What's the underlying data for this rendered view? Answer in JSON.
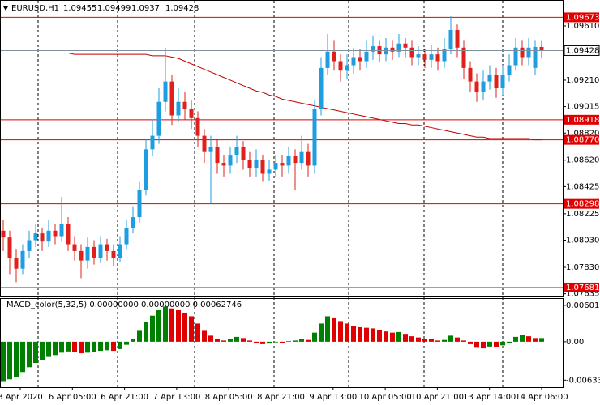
{
  "chart_data": {
    "type": "candlestick",
    "symbol": "EURUSD,H1",
    "up_color": "#1e9ee0",
    "down_color": "#e0201a",
    "ma_color": "#c00000",
    "open": [
      1.081,
      1.0805,
      1.079,
      1.0782,
      1.0795,
      1.0803,
      1.0808,
      1.0802,
      1.081,
      1.0806,
      1.0815,
      1.08,
      1.0795,
      1.0788,
      1.0798,
      1.079,
      1.08,
      1.0795,
      1.079,
      1.08,
      1.0812,
      1.082,
      1.084,
      1.087,
      1.088,
      1.0905,
      1.092,
      1.0895,
      1.0905,
      1.09,
      1.0893,
      1.088,
      1.0868,
      1.0872,
      1.086,
      1.0858,
      1.0866,
      1.0872,
      1.0862,
      1.0856,
      1.0862,
      1.0852,
      1.0855,
      1.086,
      1.0858,
      1.0865,
      1.086,
      1.0868,
      1.0858,
      1.09,
      1.093,
      1.0942,
      1.0935,
      1.0928,
      1.0932,
      1.0938,
      1.0935,
      1.0942,
      1.0946,
      1.094,
      1.0945,
      1.0942,
      1.0948,
      1.0945,
      1.0938,
      1.094,
      1.0936,
      1.094,
      1.0935,
      1.0944,
      1.0958,
      1.0945,
      1.093,
      1.092,
      1.0912,
      1.092,
      1.0925,
      1.0915,
      1.0925,
      1.0932,
      1.0945,
      1.0938,
      1.093,
      1.09455
    ],
    "high": [
      1.0818,
      1.081,
      1.0796,
      1.08,
      1.081,
      1.0815,
      1.0812,
      1.0818,
      1.0815,
      1.0835,
      1.082,
      1.0806,
      1.08,
      1.0805,
      1.0803,
      1.0806,
      1.0804,
      1.08,
      1.0806,
      1.0818,
      1.0828,
      1.0846,
      1.0878,
      1.0892,
      1.0915,
      1.0945,
      1.0925,
      1.0915,
      1.0912,
      1.0906,
      1.0898,
      1.0885,
      1.088,
      1.0878,
      1.0866,
      1.0872,
      1.088,
      1.0876,
      1.0868,
      1.087,
      1.0866,
      1.0862,
      1.0866,
      1.0866,
      1.0872,
      1.087,
      1.088,
      1.0874,
      1.0906,
      1.0938,
      1.0955,
      1.095,
      1.094,
      1.094,
      1.0945,
      1.0944,
      1.095,
      1.0954,
      1.095,
      1.0952,
      1.095,
      1.0955,
      1.0952,
      1.095,
      1.0946,
      1.0944,
      1.0947,
      1.0945,
      1.0952,
      1.0968,
      1.0962,
      1.095,
      1.0935,
      1.0926,
      1.0928,
      1.0932,
      1.093,
      1.0932,
      1.094,
      1.0952,
      1.095,
      1.0952,
      1.095,
      1.09499
    ],
    "low": [
      1.0795,
      1.0778,
      1.0772,
      1.0778,
      1.079,
      1.0798,
      1.0795,
      1.0798,
      1.08,
      1.0802,
      1.0795,
      1.0788,
      1.0775,
      1.0782,
      1.0785,
      1.0786,
      1.0788,
      1.0784,
      1.0787,
      1.0796,
      1.0808,
      1.0816,
      1.0836,
      1.0865,
      1.0874,
      1.0898,
      1.0888,
      1.089,
      1.0892,
      1.0885,
      1.0872,
      1.086,
      1.083,
      1.0852,
      1.085,
      1.0852,
      1.086,
      1.0855,
      1.085,
      1.085,
      1.0846,
      1.0847,
      1.085,
      1.085,
      1.0852,
      1.084,
      1.0855,
      1.085,
      1.0852,
      1.0895,
      1.0925,
      1.0928,
      1.092,
      1.0922,
      1.0926,
      1.0928,
      1.093,
      1.0936,
      1.0934,
      1.0935,
      1.0936,
      1.0938,
      1.0938,
      1.0932,
      1.0932,
      1.093,
      1.093,
      1.0928,
      1.093,
      1.094,
      1.0938,
      1.0922,
      1.0912,
      1.0905,
      1.0906,
      1.0914,
      1.0908,
      1.091,
      1.092,
      1.0928,
      1.0932,
      1.0932,
      1.0925,
      1.0937
    ],
    "close": [
      1.0805,
      1.079,
      1.0782,
      1.0795,
      1.0803,
      1.0808,
      1.0802,
      1.081,
      1.0806,
      1.0815,
      1.08,
      1.0795,
      1.0788,
      1.0798,
      1.079,
      1.08,
      1.0795,
      1.079,
      1.08,
      1.0812,
      1.082,
      1.084,
      1.087,
      1.088,
      1.0905,
      1.092,
      1.0895,
      1.0905,
      1.09,
      1.0893,
      1.088,
      1.0868,
      1.0872,
      1.086,
      1.0858,
      1.0866,
      1.0872,
      1.0862,
      1.0856,
      1.0862,
      1.0852,
      1.0855,
      1.086,
      1.0858,
      1.0865,
      1.086,
      1.0868,
      1.0858,
      1.09,
      1.093,
      1.0942,
      1.0935,
      1.0928,
      1.0932,
      1.0938,
      1.0935,
      1.0942,
      1.0946,
      1.094,
      1.0945,
      1.0942,
      1.0948,
      1.0945,
      1.0938,
      1.094,
      1.0936,
      1.094,
      1.0935,
      1.0944,
      1.0958,
      1.0945,
      1.093,
      1.092,
      1.0912,
      1.092,
      1.0925,
      1.0915,
      1.0925,
      1.0932,
      1.0945,
      1.0938,
      1.0945,
      1.09455,
      1.09428
    ],
    "ma": [
      1.0941,
      1.0941,
      1.0941,
      1.0941,
      1.0941,
      1.0941,
      1.0941,
      1.0941,
      1.0941,
      1.0941,
      1.0941,
      1.094,
      1.094,
      1.094,
      1.094,
      1.094,
      1.094,
      1.094,
      1.094,
      1.094,
      1.094,
      1.094,
      1.094,
      1.0939,
      1.0939,
      1.0939,
      1.0938,
      1.0937,
      1.0935,
      1.0933,
      1.0931,
      1.0929,
      1.0927,
      1.0925,
      1.0923,
      1.0921,
      1.0919,
      1.0917,
      1.0915,
      1.0913,
      1.0912,
      1.091,
      1.0909,
      1.0907,
      1.0906,
      1.0905,
      1.0904,
      1.0903,
      1.0902,
      1.0901,
      1.09,
      1.0899,
      1.0898,
      1.0897,
      1.0896,
      1.0895,
      1.0894,
      1.0893,
      1.0892,
      1.0891,
      1.089,
      1.0889,
      1.0889,
      1.0888,
      1.0888,
      1.0887,
      1.0886,
      1.0885,
      1.0884,
      1.0883,
      1.0882,
      1.0881,
      1.088,
      1.0879,
      1.0879,
      1.0878,
      1.0878,
      1.0878,
      1.0878,
      1.0878,
      1.0878,
      1.0878,
      1.0877,
      1.0877
    ],
    "ylim": [
      1.07621,
      1.09801
    ],
    "yticks": [
      {
        "value": 1.0961,
        "label": "1.09610"
      },
      {
        "value": 1.0921,
        "label": "1.09210"
      },
      1.09015,
      {
        "value": 1.0882,
        "label": "1.08820"
      },
      {
        "value": 1.0862,
        "label": "1.08620"
      },
      1.08425,
      1.08225,
      {
        "value": 1.0803,
        "label": "1.08030"
      },
      {
        "value": 1.0783,
        "label": "1.07830"
      },
      1.07635
    ],
    "levels": [
      1.09673,
      1.08918,
      {
        "value": 1.0877,
        "label": "1.08770"
      },
      1.08298,
      1.07681
    ],
    "level_color": "#e00000",
    "x_labels": [
      "3 Apr 2020",
      "6 Apr 05:00",
      "6 Apr 21:00",
      "7 Apr 13:00",
      "8 Apr 05:00",
      "8 Apr 21:00",
      "9 Apr 13:00",
      "10 Apr 05:00",
      "10 Apr 21:00",
      "13 Apr 14:00",
      "14 Apr 06:00"
    ],
    "indicator_title": "MACD_color(5,32,5) 0.00000000 0.00000000 0.00062746",
    "macd": {
      "name": "MACD_color(5,32,5)",
      "up_color": "#008000",
      "down_color": "#e00000",
      "values": [
        -0.0065,
        -0.0062,
        -0.0058,
        -0.005,
        -0.0042,
        -0.0035,
        -0.003,
        -0.0025,
        -0.0022,
        -0.0018,
        -0.0016,
        -0.0017,
        -0.0019,
        -0.0018,
        -0.0017,
        -0.0015,
        -0.0014,
        -0.0015,
        -0.0012,
        -0.0005,
        0.0005,
        0.0018,
        0.0032,
        0.0043,
        0.0052,
        0.0058,
        0.0055,
        0.0052,
        0.0048,
        0.0042,
        0.003,
        0.0018,
        0.001,
        0.0004,
        0.0002,
        0.0004,
        0.0008,
        0.0006,
        0.0002,
        -0.0002,
        -0.0004,
        -0.0003,
        -0.0001,
        -0.0002,
        0.0001,
        0.0002,
        0.0005,
        0.0003,
        0.0015,
        0.003,
        0.0042,
        0.004,
        0.0034,
        0.003,
        0.0026,
        0.0024,
        0.0023,
        0.0022,
        0.0019,
        0.0017,
        0.0015,
        0.0016,
        0.0013,
        0.0009,
        0.0007,
        0.0005,
        0.0004,
        0.0002,
        0.0003,
        0.001,
        0.0007,
        0.0002,
        -0.0004,
        -0.001,
        -0.0011,
        -0.0008,
        -0.0009,
        -0.0006,
        -0.0002,
        0.0008,
        0.0011,
        0.0009,
        0.0006,
        0.0006
      ]
    },
    "y2lim": [
      -0.0075,
      0.0072
    ],
    "y2ticks": [
      {
        "value": 0.006015,
        "label": "0.0060150"
      },
      {
        "value": 0,
        "label": "0.00"
      },
      {
        "value": -0.006337,
        "label": "-0.006337"
      }
    ]
  }
}
